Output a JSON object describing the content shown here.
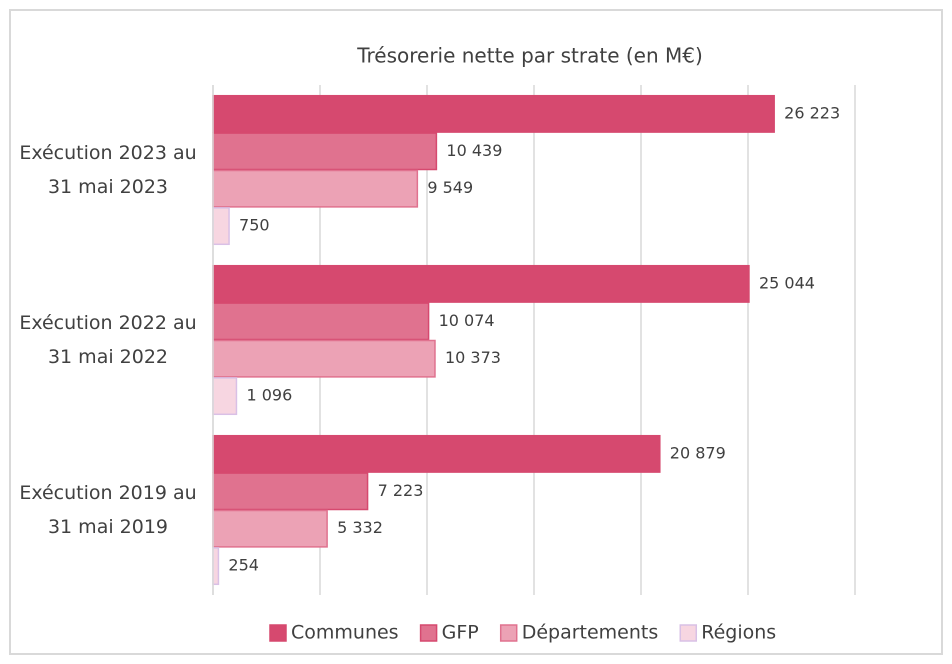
{
  "chart_data": {
    "type": "bar",
    "orientation": "horizontal",
    "title": "Trésorerie nette par strate (en M€)",
    "categories": [
      "Exécution 2023 au 31 mai 2023",
      "Exécution 2022 au 31 mai 2022",
      "Exécution 2019 au 31 mai 2019"
    ],
    "series": [
      {
        "name": "Communes",
        "color": "#d6496f",
        "border": "#d6496f",
        "values": [
          26223,
          25044,
          20879
        ],
        "value_labels": [
          "26 223",
          "25 044",
          "20 879"
        ]
      },
      {
        "name": "GFP",
        "color": "#e0728f",
        "border": "#d6496f",
        "values": [
          10439,
          10074,
          7223
        ],
        "value_labels": [
          "10 439",
          "10 074",
          "7 223"
        ]
      },
      {
        "name": "Départements",
        "color": "#eca2b5",
        "border": "#e0728f",
        "values": [
          9549,
          10373,
          5332
        ],
        "value_labels": [
          "9 549",
          "10 373",
          "5 332"
        ]
      },
      {
        "name": "Régions",
        "color": "#f7d6e1",
        "border": "#d9c0e6",
        "values": [
          750,
          1096,
          254
        ],
        "value_labels": [
          "750",
          "1 096",
          "254"
        ]
      }
    ],
    "xlim": [
      0,
      30000
    ],
    "xticks": [
      0,
      5000,
      10000,
      15000,
      20000,
      25000,
      30000
    ],
    "grid": true,
    "legend": "bottom"
  }
}
